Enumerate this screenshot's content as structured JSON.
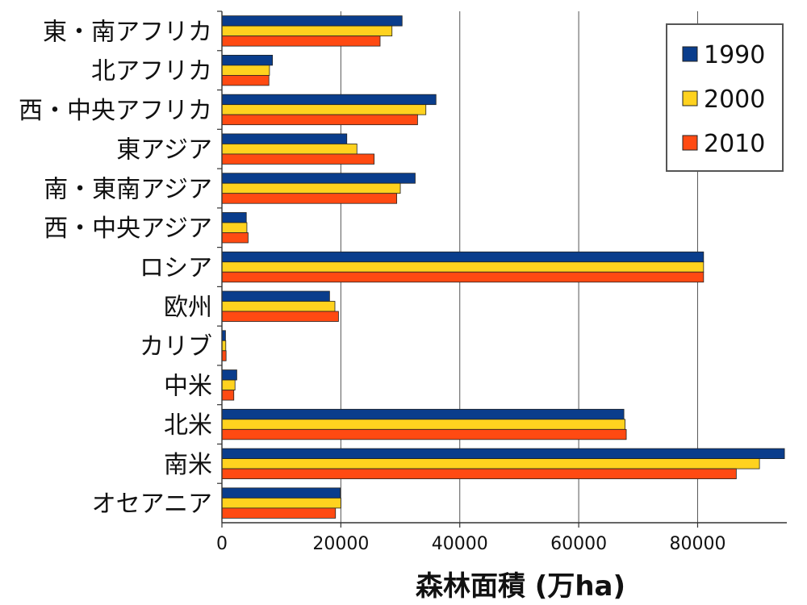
{
  "chart_data": {
    "type": "bar",
    "orientation": "horizontal",
    "categories": [
      "東・南アフリカ",
      "北アフリカ",
      "西・中央アフリカ",
      "東アジア",
      "南・東南アジア",
      "西・中央アジア",
      "ロシア",
      "欧州",
      "カリブ",
      "中米",
      "北米",
      "南米",
      "オセアニア"
    ],
    "series": [
      {
        "name": "1990",
        "color": "#0a3d8c",
        "values": [
          30300,
          8500,
          36000,
          21000,
          32500,
          4100,
          81000,
          18100,
          600,
          2500,
          67600,
          94600,
          19900
        ]
      },
      {
        "name": "2000",
        "color": "#ffd21f",
        "values": [
          28600,
          8000,
          34300,
          22700,
          30000,
          4200,
          81000,
          19000,
          650,
          2200,
          67800,
          90400,
          20000
        ]
      },
      {
        "name": "2010",
        "color": "#ff4a12",
        "values": [
          26600,
          7900,
          32900,
          25600,
          29400,
          4400,
          81000,
          19600,
          700,
          2000,
          68000,
          86500,
          19100
        ]
      }
    ],
    "xlabel": "森林面積 (万ha)",
    "ylabel": "",
    "xlim": [
      0,
      95000
    ],
    "xticks": [
      "0",
      "20000",
      "40000",
      "60000",
      "80000"
    ],
    "grid": "vertical",
    "legend": "top-right"
  }
}
